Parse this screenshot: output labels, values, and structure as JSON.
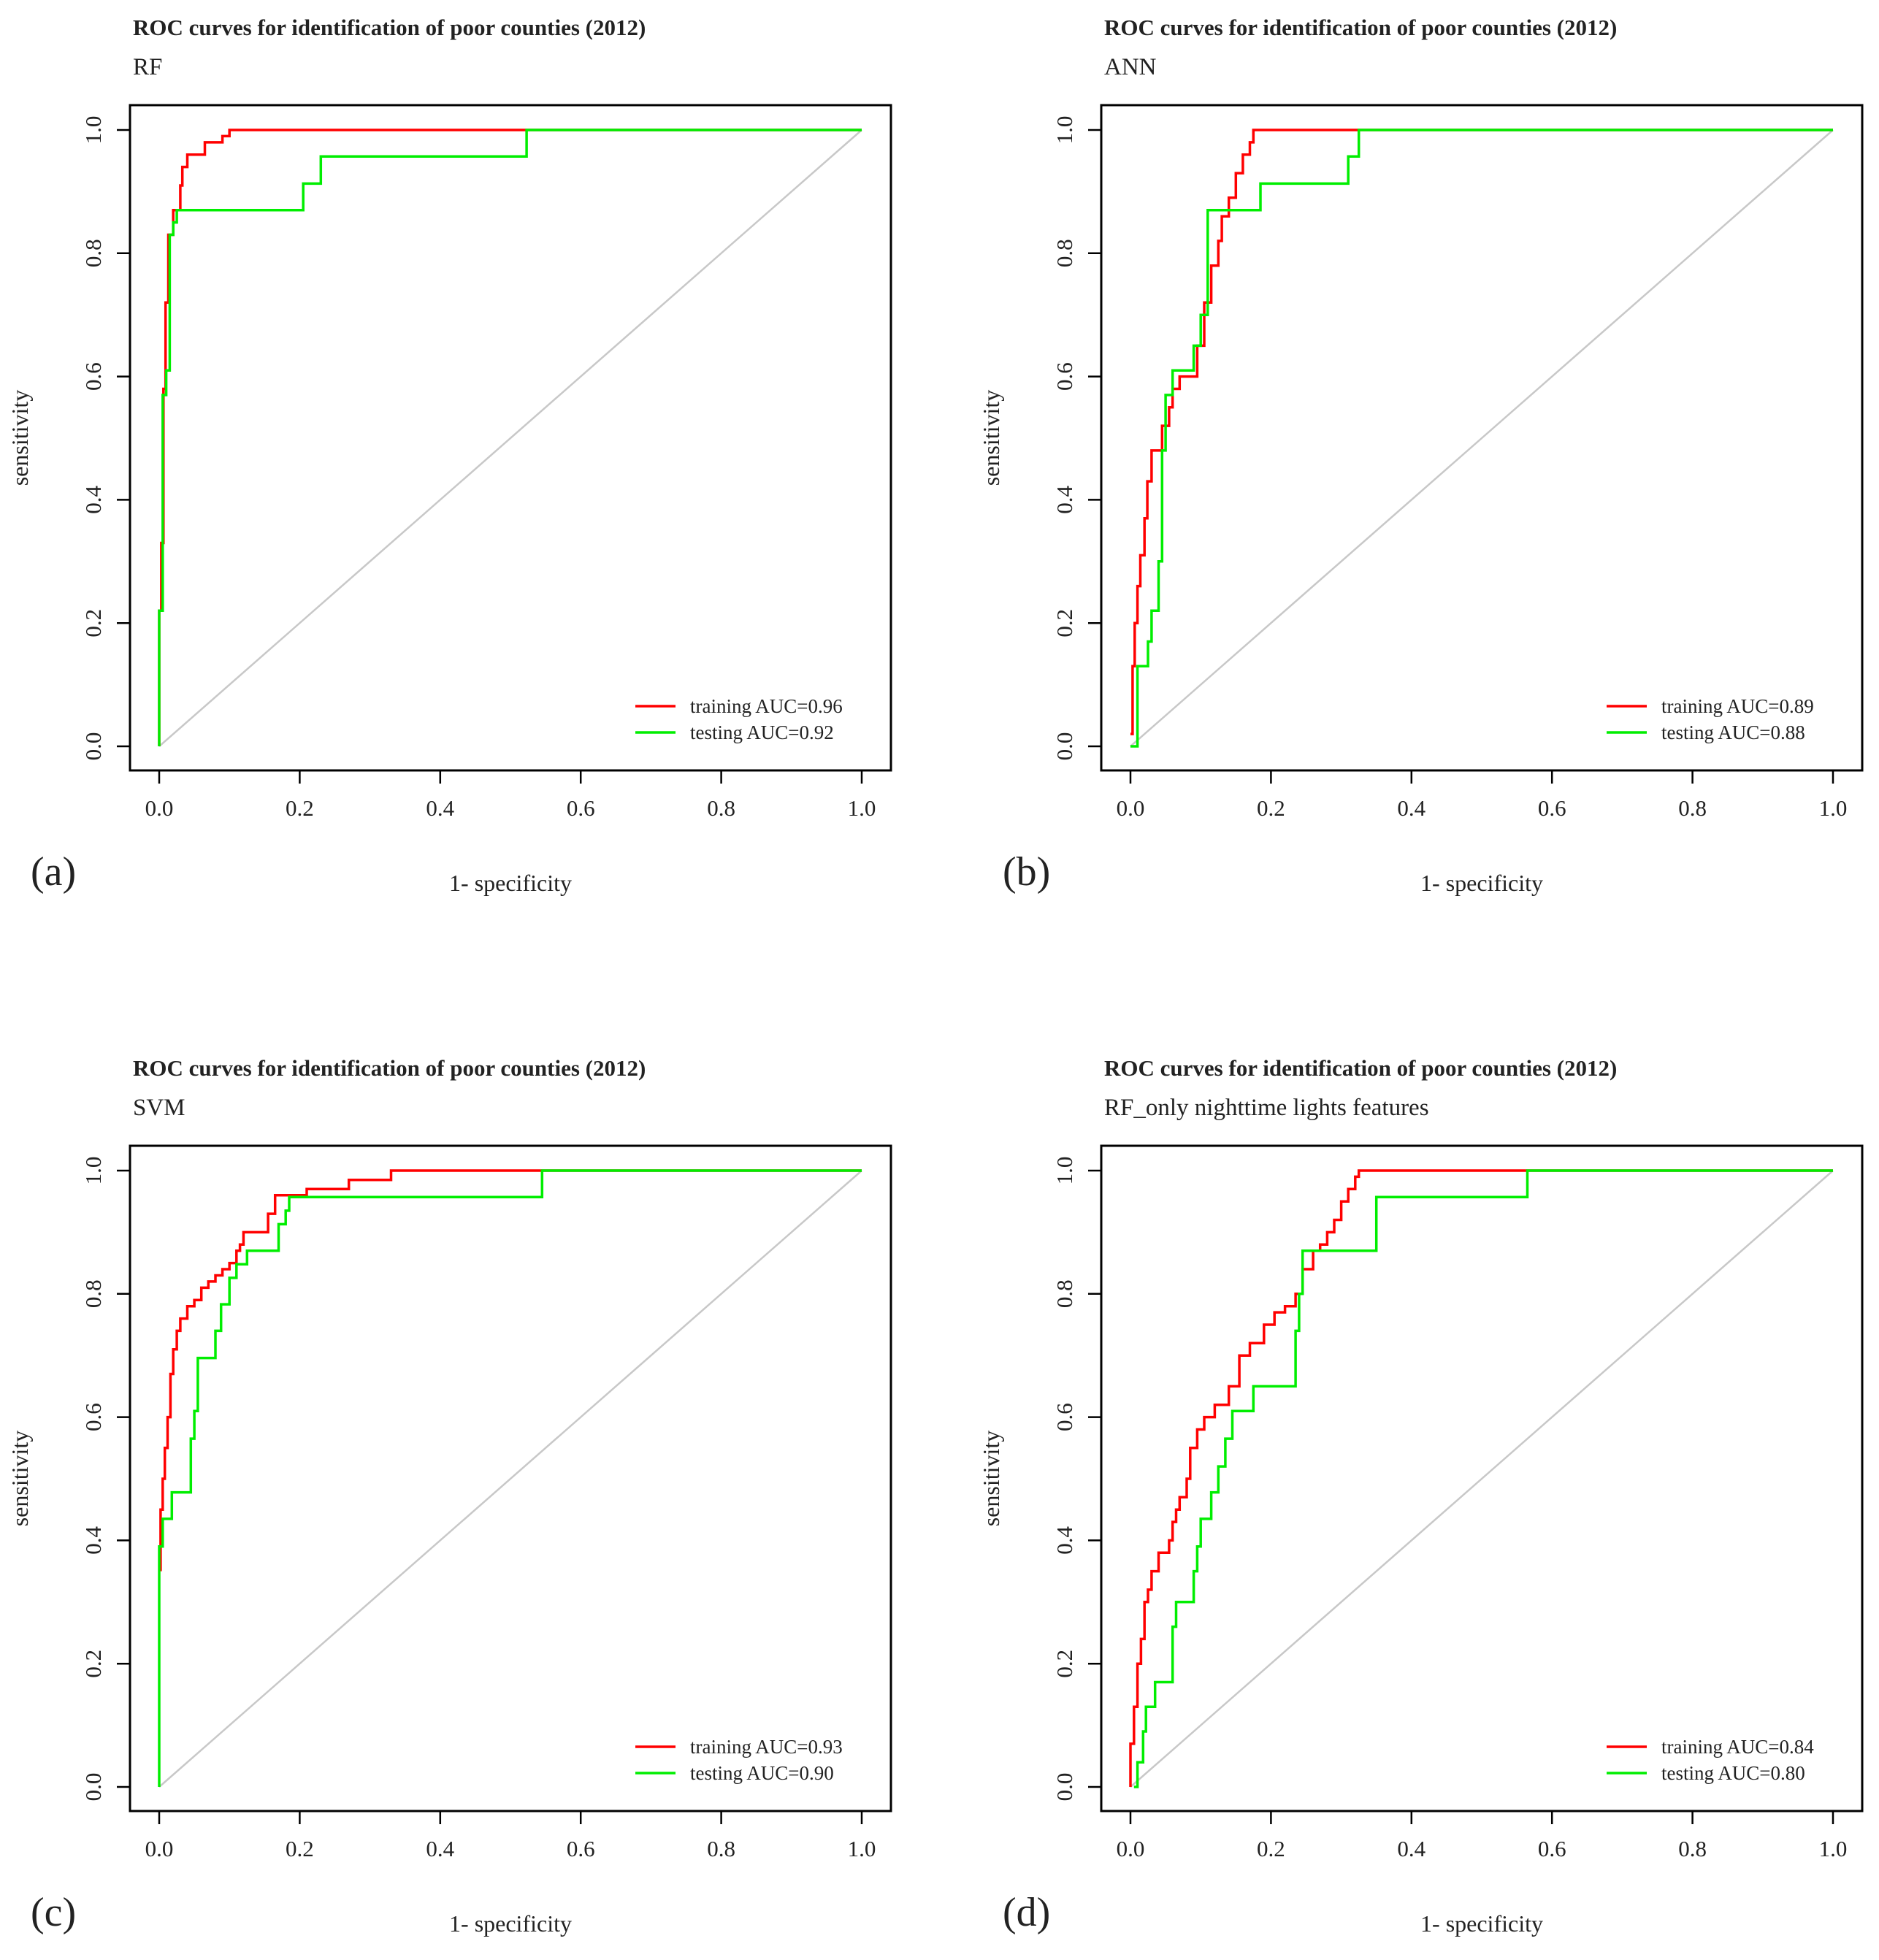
{
  "chart_data": [
    {
      "type": "line",
      "panel_label": "(a)",
      "title": "ROC curves for identification of  poor counties (2012)",
      "subtitle": "RF",
      "xlabel": "1- specificity",
      "ylabel": "sensitivity",
      "xlim": [
        0,
        1
      ],
      "ylim": [
        0,
        1
      ],
      "xticks": [
        "0.0",
        "0.2",
        "0.4",
        "0.6",
        "0.8",
        "1.0"
      ],
      "yticks": [
        "0.0",
        "0.2",
        "0.4",
        "0.6",
        "0.8",
        "1.0"
      ],
      "legend_position": "bottom-right",
      "reference_line": {
        "x": [
          0,
          1
        ],
        "y": [
          0,
          1
        ],
        "color": "#c8c8c8"
      },
      "series": [
        {
          "name": "training AUC=0.96",
          "color": "#ff0000",
          "x": [
            0,
            0,
            0.003,
            0.003,
            0.006,
            0.006,
            0.009,
            0.009,
            0.013,
            0.013,
            0.02,
            0.02,
            0.03,
            0.03,
            0.033,
            0.033,
            0.04,
            0.04,
            0.065,
            0.065,
            0.09,
            0.09,
            0.1,
            0.1,
            0.52,
            1
          ],
          "y": [
            0,
            0.22,
            0.22,
            0.33,
            0.33,
            0.58,
            0.58,
            0.72,
            0.72,
            0.83,
            0.83,
            0.87,
            0.87,
            0.91,
            0.91,
            0.94,
            0.94,
            0.96,
            0.96,
            0.98,
            0.98,
            0.99,
            0.99,
            1.0,
            1.0,
            1.0
          ]
        },
        {
          "name": "testing AUC=0.92",
          "color": "#00ee00",
          "x": [
            0,
            0,
            0.005,
            0.005,
            0.01,
            0.01,
            0.015,
            0.015,
            0.02,
            0.02,
            0.025,
            0.025,
            0.205,
            0.205,
            0.23,
            0.23,
            0.523,
            0.523,
            1.0
          ],
          "y": [
            0,
            0.22,
            0.22,
            0.57,
            0.57,
            0.61,
            0.61,
            0.83,
            0.83,
            0.85,
            0.85,
            0.87,
            0.87,
            0.913,
            0.913,
            0.957,
            0.957,
            1.0,
            1.0
          ]
        }
      ]
    },
    {
      "type": "line",
      "panel_label": "(b)",
      "title": "ROC curves for identification of  poor counties (2012)",
      "subtitle": "ANN",
      "xlabel": "1- specificity",
      "ylabel": "sensitivity",
      "xlim": [
        0,
        1
      ],
      "ylim": [
        0,
        1
      ],
      "xticks": [
        "0.0",
        "0.2",
        "0.4",
        "0.6",
        "0.8",
        "1.0"
      ],
      "yticks": [
        "0.0",
        "0.2",
        "0.4",
        "0.6",
        "0.8",
        "1.0"
      ],
      "legend_position": "bottom-right",
      "reference_line": {
        "x": [
          0,
          1
        ],
        "y": [
          0,
          1
        ],
        "color": "#c8c8c8"
      },
      "series": [
        {
          "name": "training AUC=0.89",
          "color": "#ff0000",
          "x": [
            0,
            0.003,
            0.003,
            0.006,
            0.006,
            0.01,
            0.01,
            0.014,
            0.014,
            0.02,
            0.02,
            0.024,
            0.024,
            0.03,
            0.03,
            0.045,
            0.045,
            0.055,
            0.055,
            0.06,
            0.06,
            0.07,
            0.07,
            0.095,
            0.095,
            0.105,
            0.105,
            0.115,
            0.115,
            0.125,
            0.125,
            0.13,
            0.13,
            0.14,
            0.14,
            0.15,
            0.15,
            0.16,
            0.16,
            0.17,
            0.17,
            0.175,
            0.175,
            0.32,
            1.0
          ],
          "y": [
            0.02,
            0.02,
            0.13,
            0.13,
            0.2,
            0.2,
            0.26,
            0.26,
            0.31,
            0.31,
            0.37,
            0.37,
            0.43,
            0.43,
            0.48,
            0.48,
            0.52,
            0.52,
            0.55,
            0.55,
            0.58,
            0.58,
            0.6,
            0.6,
            0.65,
            0.65,
            0.72,
            0.72,
            0.78,
            0.78,
            0.82,
            0.82,
            0.86,
            0.86,
            0.89,
            0.89,
            0.93,
            0.93,
            0.96,
            0.96,
            0.98,
            0.98,
            1.0,
            1.0,
            1.0
          ]
        },
        {
          "name": "testing AUC=0.88",
          "color": "#00ee00",
          "x": [
            0,
            0.01,
            0.01,
            0.025,
            0.025,
            0.03,
            0.03,
            0.04,
            0.04,
            0.045,
            0.045,
            0.05,
            0.05,
            0.06,
            0.06,
            0.07,
            0.07,
            0.09,
            0.09,
            0.1,
            0.1,
            0.11,
            0.11,
            0.15,
            0.15,
            0.185,
            0.185,
            0.31,
            0.31,
            0.325,
            0.325,
            1.0
          ],
          "y": [
            0,
            0,
            0.13,
            0.13,
            0.17,
            0.17,
            0.22,
            0.22,
            0.3,
            0.3,
            0.48,
            0.48,
            0.57,
            0.57,
            0.61,
            0.61,
            0.61,
            0.61,
            0.65,
            0.65,
            0.7,
            0.7,
            0.87,
            0.87,
            0.87,
            0.87,
            0.913,
            0.913,
            0.957,
            0.957,
            1.0,
            1.0
          ]
        }
      ]
    },
    {
      "type": "line",
      "panel_label": "(c)",
      "title": "ROC curves for identification of  poor counties (2012)",
      "subtitle": "SVM",
      "xlabel": "1- specificity",
      "ylabel": "sensitivity",
      "xlim": [
        0,
        1
      ],
      "ylim": [
        0,
        1
      ],
      "xticks": [
        "0.0",
        "0.2",
        "0.4",
        "0.6",
        "0.8",
        "1.0"
      ],
      "yticks": [
        "0.0",
        "0.2",
        "0.4",
        "0.6",
        "0.8",
        "1.0"
      ],
      "legend_position": "bottom-right",
      "reference_line": {
        "x": [
          0,
          1
        ],
        "y": [
          0,
          1
        ],
        "color": "#c8c8c8"
      },
      "series": [
        {
          "name": "training AUC=0.93",
          "color": "#ff0000",
          "x": [
            0.002,
            0.002,
            0.005,
            0.005,
            0.008,
            0.008,
            0.012,
            0.012,
            0.016,
            0.016,
            0.02,
            0.02,
            0.025,
            0.025,
            0.03,
            0.03,
            0.04,
            0.04,
            0.05,
            0.05,
            0.06,
            0.06,
            0.07,
            0.07,
            0.08,
            0.08,
            0.09,
            0.09,
            0.1,
            0.1,
            0.11,
            0.11,
            0.115,
            0.115,
            0.12,
            0.12,
            0.13,
            0.13,
            0.155,
            0.155,
            0.165,
            0.165,
            0.2,
            0.2,
            0.21,
            0.21,
            0.27,
            0.27,
            0.33,
            0.33,
            0.545,
            1.0
          ],
          "y": [
            0.35,
            0.45,
            0.45,
            0.5,
            0.5,
            0.55,
            0.55,
            0.6,
            0.6,
            0.67,
            0.67,
            0.71,
            0.71,
            0.74,
            0.74,
            0.76,
            0.76,
            0.78,
            0.78,
            0.79,
            0.79,
            0.81,
            0.81,
            0.82,
            0.82,
            0.83,
            0.83,
            0.84,
            0.84,
            0.85,
            0.85,
            0.87,
            0.87,
            0.88,
            0.88,
            0.9,
            0.9,
            0.9,
            0.9,
            0.93,
            0.93,
            0.96,
            0.96,
            0.96,
            0.96,
            0.97,
            0.97,
            0.985,
            0.985,
            1.0,
            1.0,
            1.0
          ]
        },
        {
          "name": "testing AUC=0.90",
          "color": "#00ee00",
          "x": [
            0,
            0,
            0.005,
            0.005,
            0.018,
            0.018,
            0.045,
            0.045,
            0.05,
            0.05,
            0.055,
            0.055,
            0.08,
            0.08,
            0.088,
            0.088,
            0.1,
            0.1,
            0.11,
            0.11,
            0.125,
            0.125,
            0.17,
            0.17,
            0.18,
            0.18,
            0.185,
            0.185,
            0.545,
            0.545,
            1.0
          ],
          "y": [
            0,
            0.39,
            0.39,
            0.435,
            0.435,
            0.478,
            0.478,
            0.565,
            0.565,
            0.61,
            0.61,
            0.696,
            0.696,
            0.74,
            0.74,
            0.783,
            0.783,
            0.826,
            0.826,
            0.848,
            0.848,
            0.87,
            0.87,
            0.913,
            0.913,
            0.935,
            0.935,
            0.957,
            0.957,
            1.0,
            1.0
          ]
        }
      ]
    },
    {
      "type": "line",
      "panel_label": "(d)",
      "title": "ROC curves for identification of  poor counties (2012)",
      "subtitle": "RF_only nighttime lights features",
      "xlabel": "1- specificity",
      "ylabel": "sensitivity",
      "xlim": [
        0,
        1
      ],
      "ylim": [
        0,
        1
      ],
      "xticks": [
        "0.0",
        "0.2",
        "0.4",
        "0.6",
        "0.8",
        "1.0"
      ],
      "yticks": [
        "0.0",
        "0.2",
        "0.4",
        "0.6",
        "0.8",
        "1.0"
      ],
      "legend_position": "bottom-right",
      "reference_line": {
        "x": [
          0,
          1
        ],
        "y": [
          0,
          1
        ],
        "color": "#c8c8c8"
      },
      "series": [
        {
          "name": "training AUC=0.84",
          "color": "#ff0000",
          "x": [
            0,
            0,
            0.005,
            0.005,
            0.01,
            0.01,
            0.015,
            0.015,
            0.02,
            0.02,
            0.025,
            0.025,
            0.03,
            0.03,
            0.04,
            0.04,
            0.055,
            0.055,
            0.06,
            0.06,
            0.065,
            0.065,
            0.07,
            0.07,
            0.08,
            0.08,
            0.085,
            0.085,
            0.095,
            0.095,
            0.105,
            0.105,
            0.12,
            0.12,
            0.14,
            0.14,
            0.155,
            0.155,
            0.17,
            0.17,
            0.19,
            0.19,
            0.205,
            0.205,
            0.22,
            0.22,
            0.235,
            0.235,
            0.245,
            0.245,
            0.26,
            0.26,
            0.27,
            0.27,
            0.28,
            0.28,
            0.29,
            0.29,
            0.3,
            0.3,
            0.31,
            0.31,
            0.32,
            0.32,
            0.325,
            0.325,
            0.565,
            1.0
          ],
          "y": [
            0,
            0.07,
            0.07,
            0.13,
            0.13,
            0.2,
            0.2,
            0.24,
            0.24,
            0.3,
            0.3,
            0.32,
            0.32,
            0.35,
            0.35,
            0.38,
            0.38,
            0.4,
            0.4,
            0.43,
            0.43,
            0.45,
            0.45,
            0.47,
            0.47,
            0.5,
            0.5,
            0.55,
            0.55,
            0.58,
            0.58,
            0.6,
            0.6,
            0.62,
            0.62,
            0.65,
            0.65,
            0.7,
            0.7,
            0.72,
            0.72,
            0.75,
            0.75,
            0.77,
            0.77,
            0.78,
            0.78,
            0.8,
            0.8,
            0.84,
            0.84,
            0.87,
            0.87,
            0.88,
            0.88,
            0.9,
            0.9,
            0.92,
            0.92,
            0.95,
            0.95,
            0.97,
            0.97,
            0.99,
            0.99,
            1.0,
            1.0,
            1.0
          ]
        },
        {
          "name": "testing AUC=0.80",
          "color": "#00ee00",
          "x": [
            0.005,
            0.01,
            0.01,
            0.018,
            0.018,
            0.022,
            0.022,
            0.035,
            0.035,
            0.06,
            0.06,
            0.065,
            0.065,
            0.07,
            0.07,
            0.09,
            0.09,
            0.095,
            0.095,
            0.1,
            0.1,
            0.115,
            0.115,
            0.125,
            0.125,
            0.135,
            0.135,
            0.145,
            0.145,
            0.155,
            0.155,
            0.175,
            0.175,
            0.195,
            0.195,
            0.235,
            0.235,
            0.24,
            0.24,
            0.245,
            0.245,
            0.255,
            0.255,
            0.33,
            0.33,
            0.35,
            0.35,
            0.565,
            0.565,
            1.0
          ],
          "y": [
            0,
            0,
            0.04,
            0.04,
            0.09,
            0.09,
            0.13,
            0.13,
            0.17,
            0.17,
            0.26,
            0.26,
            0.3,
            0.3,
            0.3,
            0.3,
            0.35,
            0.35,
            0.39,
            0.39,
            0.435,
            0.435,
            0.478,
            0.478,
            0.52,
            0.52,
            0.565,
            0.565,
            0.61,
            0.61,
            0.61,
            0.61,
            0.65,
            0.65,
            0.65,
            0.65,
            0.74,
            0.74,
            0.8,
            0.8,
            0.87,
            0.87,
            0.87,
            0.87,
            0.87,
            0.87,
            0.957,
            0.957,
            1.0,
            1.0
          ]
        }
      ]
    }
  ]
}
